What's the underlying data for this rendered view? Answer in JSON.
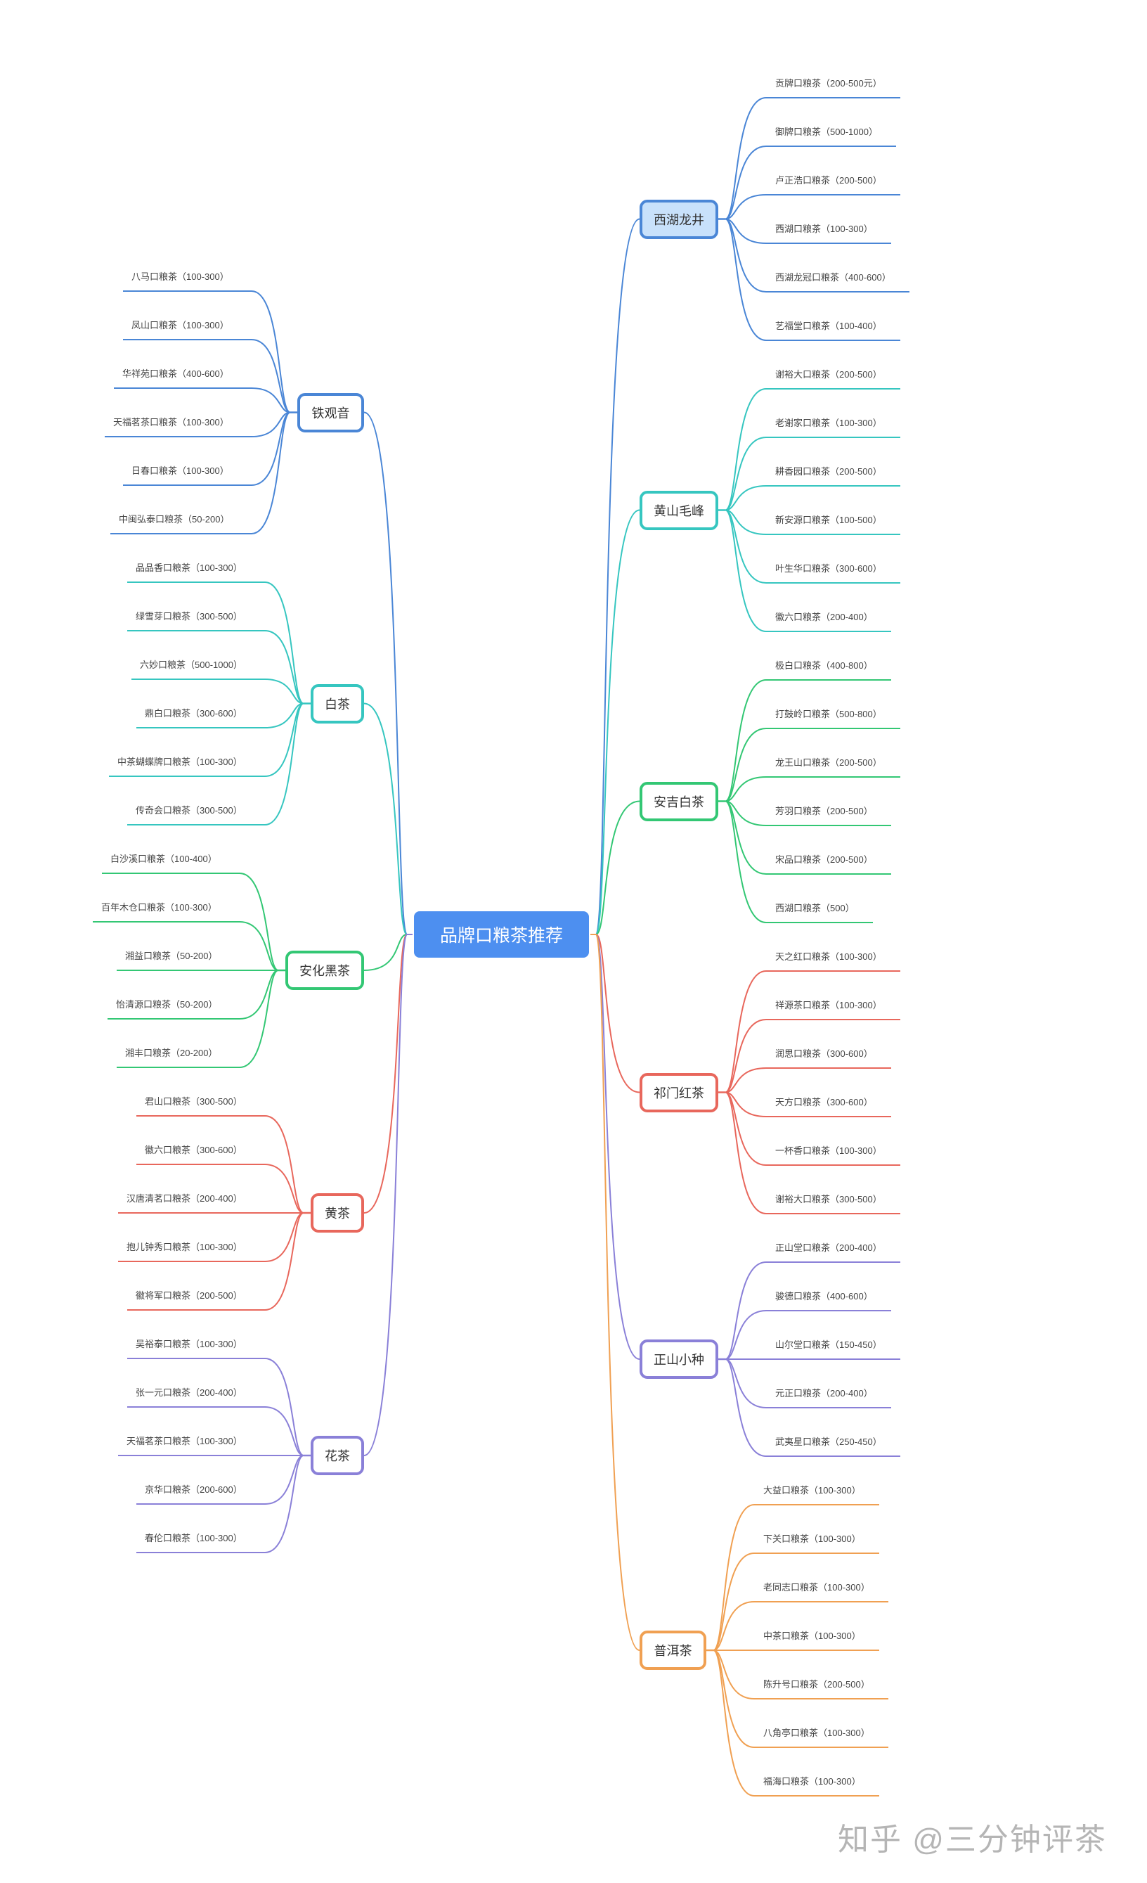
{
  "central": {
    "label": "品牌口粮茶推荐",
    "color": "#4d8ff0"
  },
  "right_groups": [
    {
      "label": "西湖龙井",
      "color": "#4a86d6",
      "fill": "#c8e1fb",
      "leaves": [
        "贡牌口粮茶（200-500元）",
        "御牌口粮茶（500-1000）",
        "卢正浩口粮茶（200-500）",
        "西湖口粮茶（100-300）",
        "西湖龙冠口粮茶（400-600）",
        "艺福堂口粮茶（100-400）"
      ]
    },
    {
      "label": "黄山毛峰",
      "color": "#36c6c0",
      "fill": "#ffffff",
      "leaves": [
        "谢裕大口粮茶（200-500）",
        "老谢家口粮茶（100-300）",
        "耕香园口粮茶（200-500）",
        "新安源口粮茶（100-500）",
        "叶生华口粮茶（300-600）",
        "徽六口粮茶（200-400）"
      ]
    },
    {
      "label": "安吉白茶",
      "color": "#33c774",
      "fill": "#ffffff",
      "leaves": [
        "极白口粮茶（400-800）",
        "打鼓岭口粮茶（500-800）",
        "龙王山口粮茶（200-500）",
        "芳羽口粮茶（200-500）",
        "宋品口粮茶（200-500）",
        "西湖口粮茶（500）"
      ]
    },
    {
      "label": "祁门红茶",
      "color": "#e8675c",
      "fill": "#ffffff",
      "leaves": [
        "天之红口粮茶（100-300）",
        "祥源茶口粮茶（100-300）",
        "润思口粮茶（300-600）",
        "天方口粮茶（300-600）",
        "一杯香口粮茶（100-300）",
        "谢裕大口粮茶（300-500）"
      ]
    },
    {
      "label": "正山小种",
      "color": "#8a80d8",
      "fill": "#ffffff",
      "leaves": [
        "正山堂口粮茶（200-400）",
        "骏德口粮茶（400-600）",
        "山尔堂口粮茶（150-450）",
        "元正口粮茶（200-400）",
        "武夷星口粮茶（250-450）"
      ]
    },
    {
      "label": "普洱茶",
      "color": "#f0a052",
      "fill": "#ffffff",
      "leaves": [
        "大益口粮茶（100-300）",
        "下关口粮茶（100-300）",
        "老同志口粮茶（100-300）",
        "中茶口粮茶（100-300）",
        "陈升号口粮茶（200-500）",
        "八角亭口粮茶（100-300）",
        "福海口粮茶（100-300）"
      ]
    }
  ],
  "left_groups": [
    {
      "label": "铁观音",
      "color": "#4a86d6",
      "leaves": [
        "八马口粮茶（100-300）",
        "凤山口粮茶（100-300）",
        "华祥苑口粮茶（400-600）",
        "天福茗茶口粮茶（100-300）",
        "日春口粮茶（100-300）",
        "中闽弘泰口粮茶（50-200）"
      ]
    },
    {
      "label": "白茶",
      "color": "#36c6c0",
      "leaves": [
        "品品香口粮茶（100-300）",
        "绿雪芽口粮茶（300-500）",
        "六妙口粮茶（500-1000）",
        "鼎白口粮茶（300-600）",
        "中茶蝴蝶牌口粮茶（100-300）",
        "传奇会口粮茶（300-500）"
      ]
    },
    {
      "label": "安化黑茶",
      "color": "#33c774",
      "leaves": [
        "白沙溪口粮茶（100-400）",
        "百年木仓口粮茶（100-300）",
        "湘益口粮茶（50-200）",
        "怡清源口粮茶（50-200）",
        "湘丰口粮茶（20-200）"
      ]
    },
    {
      "label": "黄茶",
      "color": "#e8675c",
      "leaves": [
        "君山口粮茶（300-500）",
        "徽六口粮茶（300-600）",
        "汉唐清茗口粮茶（200-400）",
        "抱儿钟秀口粮茶（100-300）",
        "徽将军口粮茶（200-500）"
      ]
    },
    {
      "label": "花茶",
      "color": "#8a80d8",
      "leaves": [
        "吴裕泰口粮茶（100-300）",
        "张一元口粮茶（200-400）",
        "天福茗茶口粮茶（100-300）",
        "京华口粮茶（200-600）",
        "春伦口粮茶（100-300）"
      ]
    }
  ],
  "watermark": "知乎 @三分钟评茶"
}
